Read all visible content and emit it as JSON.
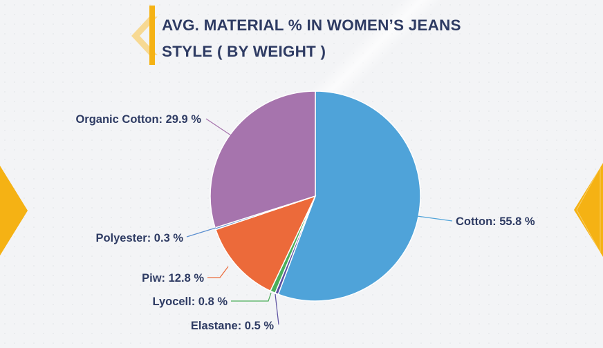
{
  "title": {
    "line1": "AVG. MATERIAL % IN WOMEN’S JEANS",
    "line2": "STYLE ( BY WEIGHT )"
  },
  "colors": {
    "accent": "#f5b214",
    "title": "#2e3b63"
  },
  "chart_data": {
    "type": "pie",
    "title": "AVG. MATERIAL % IN WOMEN’S JEANS STYLE ( BY WEIGHT )",
    "slices": [
      {
        "label": "Cotton",
        "value": 55.8,
        "display": "Cotton: 55.8 %",
        "color": "#4fa3d9",
        "line": "#4fa3d9"
      },
      {
        "label": "Elastane",
        "value": 0.5,
        "display": "Elastane: 0.5 %",
        "color": "#5b4fa0",
        "line": "#5b4fa0"
      },
      {
        "label": "Lyocell",
        "value": 0.8,
        "display": "Lyocell: 0.8 %",
        "color": "#4cae5a",
        "line": "#4cae5a"
      },
      {
        "label": "Piw",
        "value": 12.8,
        "display": "Piw: 12.8 %",
        "color": "#ec6a3a",
        "line": "#ec6a3a"
      },
      {
        "label": "Polyester",
        "value": 0.3,
        "display": "Polyester: 0.3 %",
        "color": "#5b8fd0",
        "line": "#5b8fd0"
      },
      {
        "label": "Organic Cotton",
        "value": 29.9,
        "display": "Organic Cotton: 29.9 %",
        "color": "#a674ad",
        "line": "#a674ad"
      }
    ]
  }
}
